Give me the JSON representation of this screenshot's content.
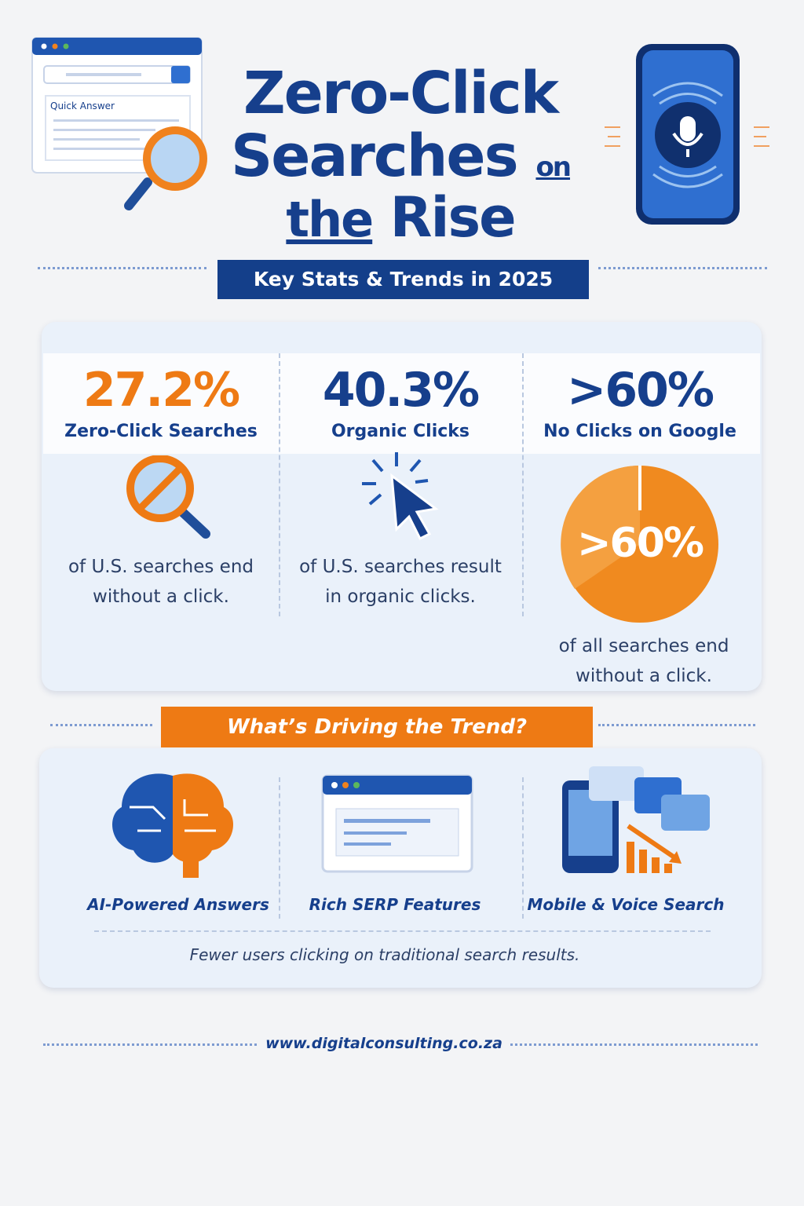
{
  "illustration": {
    "browser_label": "Quick Answer"
  },
  "header": {
    "title_parts": [
      "Zero-Click",
      "Searches",
      "on",
      "the",
      "Rise"
    ],
    "subtitle": "Key Stats & Trends in 2025"
  },
  "stats": [
    {
      "value": "27.2%",
      "label": "Zero-Click Searches",
      "description": "of U.S. searches end without a click."
    },
    {
      "value": "40.3%",
      "label": "Organic Clicks",
      "description": "of U.S. searches result in organic clicks."
    },
    {
      "value": ">60%",
      "label": "No Clicks on Google",
      "badge": ">60%",
      "description": "of all searches end without a click."
    }
  ],
  "drivers": {
    "title": "What’s Driving the Trend?",
    "items": [
      "AI-Powered Answers",
      "Rich SERP Features",
      "Mobile & Voice Search"
    ],
    "note": "Fewer users clicking on traditional search results."
  },
  "footer": {
    "url": "www.digitalconsulting.co.za"
  }
}
